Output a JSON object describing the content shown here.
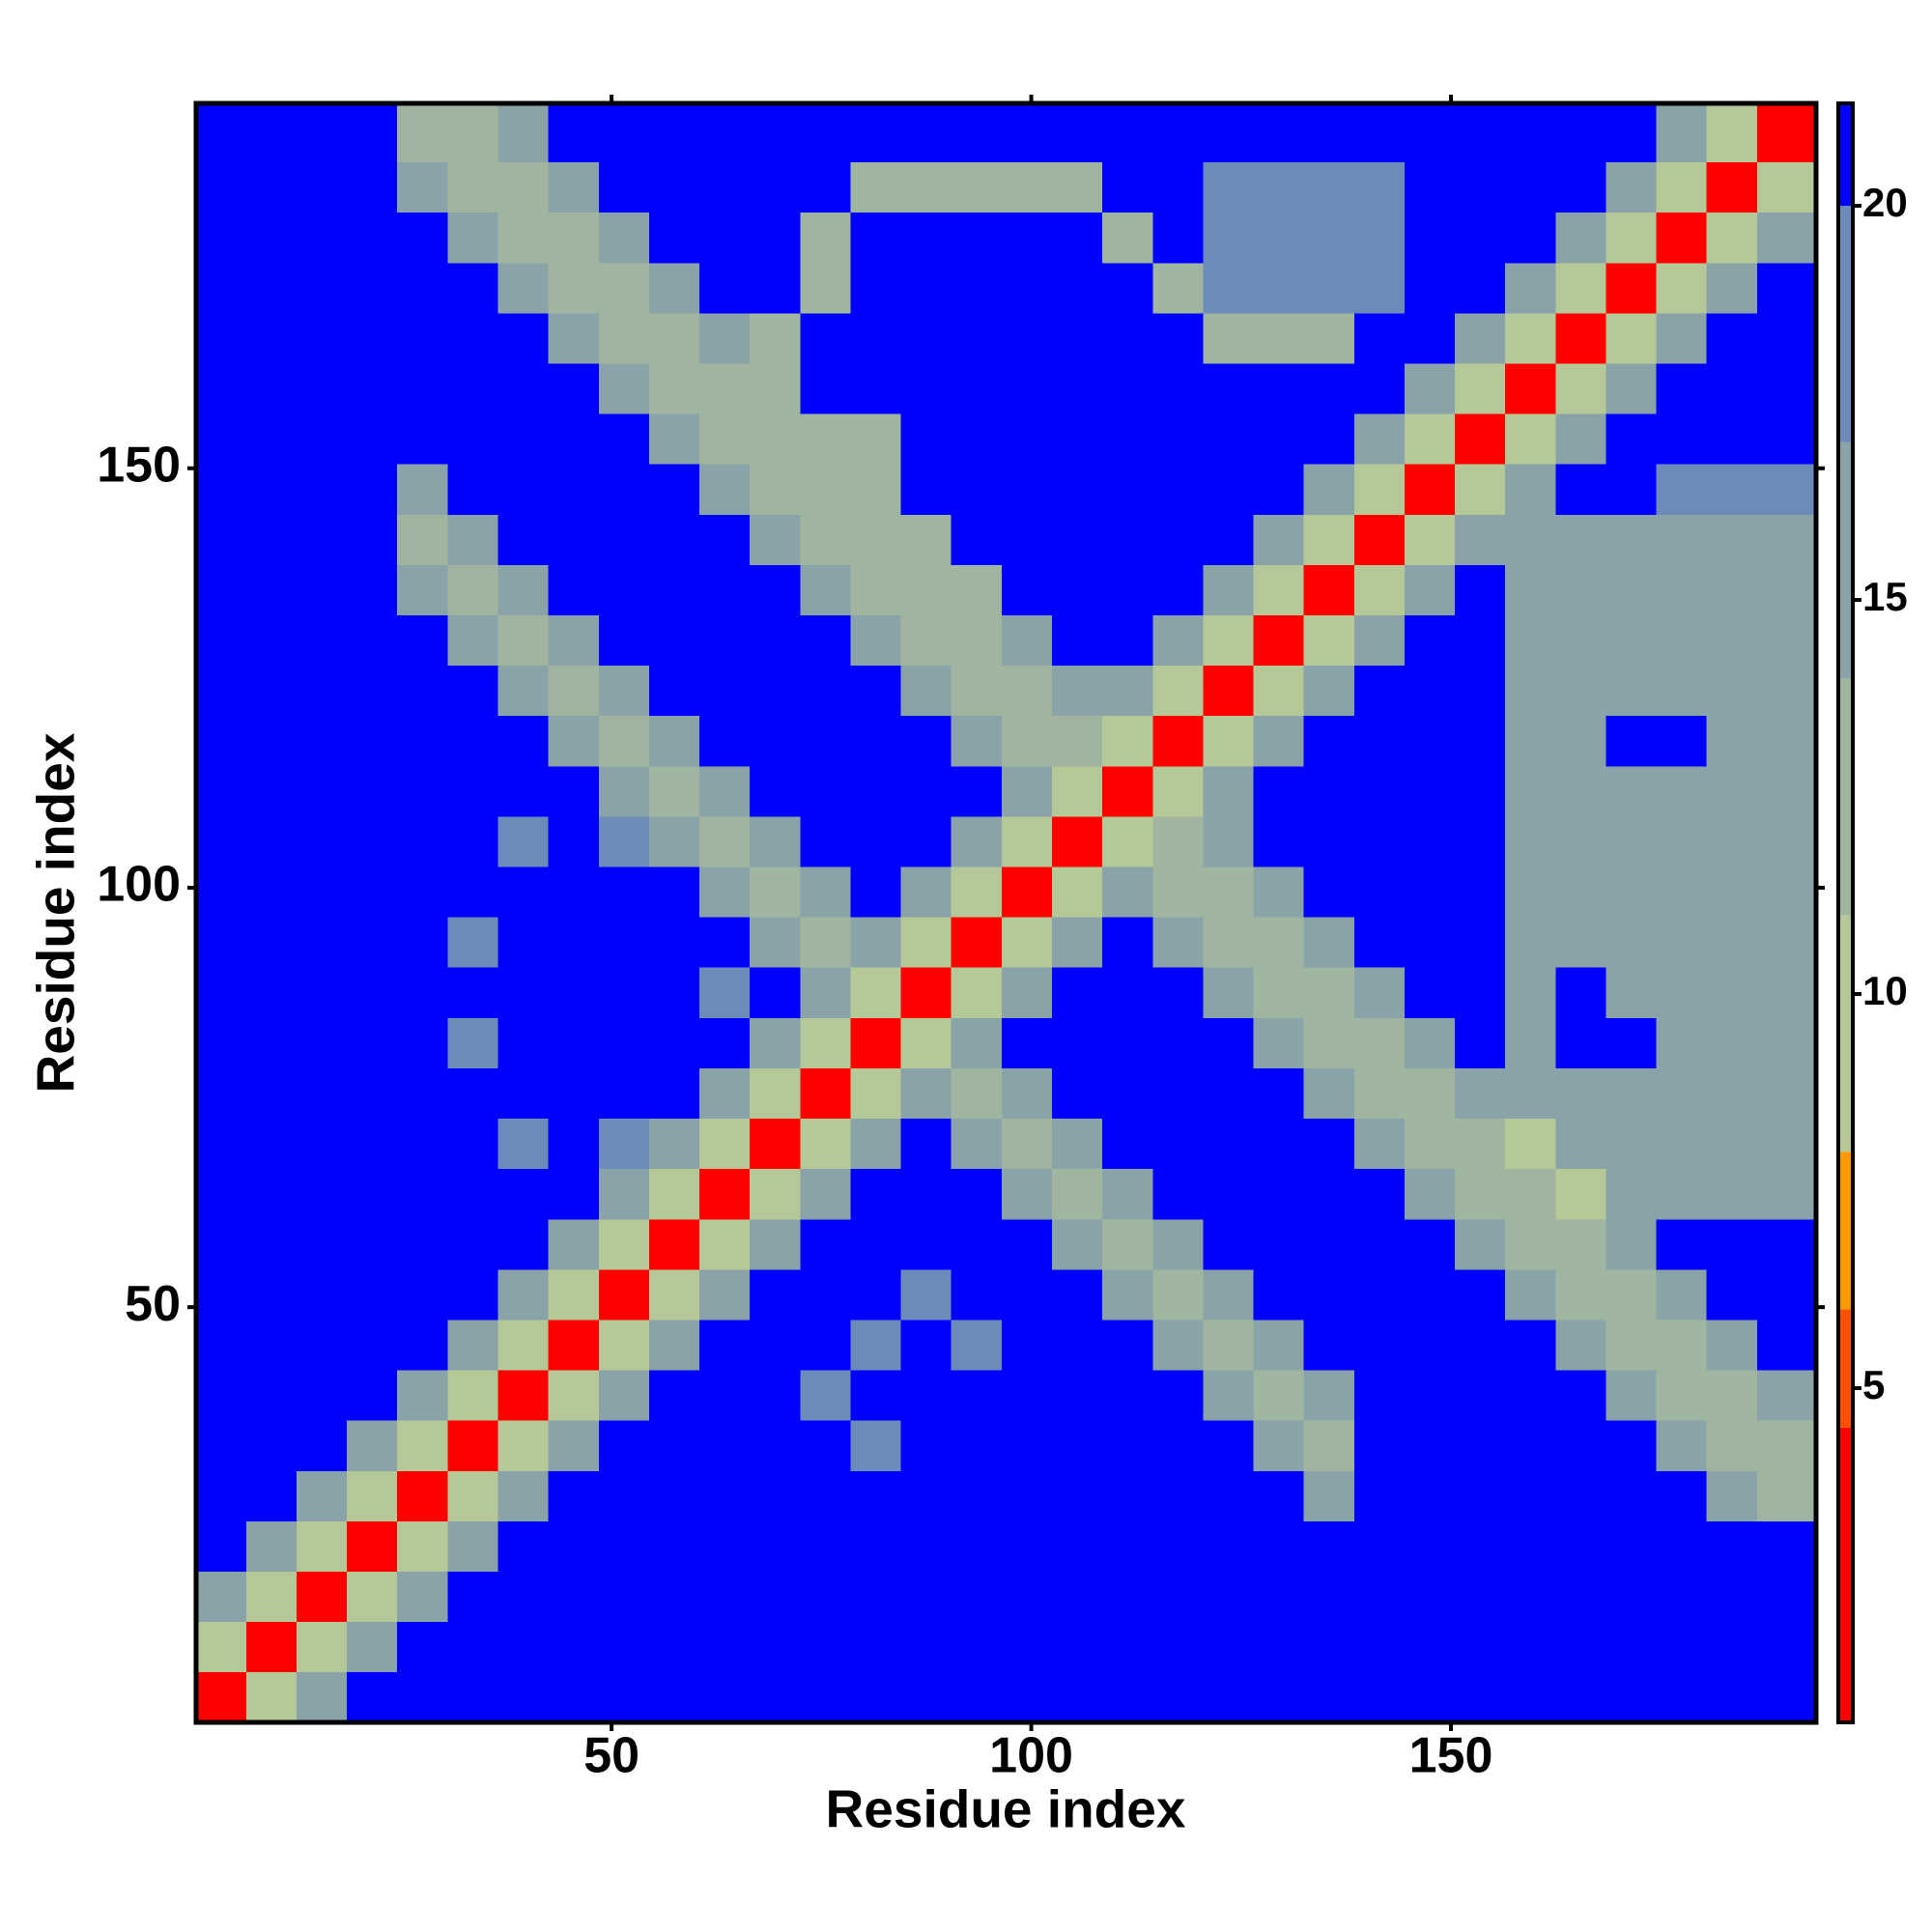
{
  "chart_data": {
    "type": "heatmap",
    "xlabel": "Residue index",
    "ylabel": "Residue index",
    "xlim": [
      0.5,
      193.5
    ],
    "ylim": [
      0.5,
      193.5
    ],
    "xticks": [
      50,
      100,
      150
    ],
    "yticks": [
      50,
      100,
      150
    ],
    "xbins": [
      0.5,
      6.5,
      12.5,
      18.5,
      24.5,
      30.5,
      36.5,
      42.5,
      48.5,
      54.5,
      60.5,
      66.5,
      72.5,
      78.5,
      84.5,
      90.5,
      96.5,
      102.5,
      108.5,
      114.5,
      120.5,
      126.5,
      132.5,
      138.5,
      144.5,
      150.5,
      156.5,
      162.5,
      168.5,
      174.5,
      180.5,
      186.5,
      193.5
    ],
    "ybins": [
      0.5,
      6.5,
      12.5,
      18.5,
      24.5,
      30.5,
      36.5,
      42.5,
      48.5,
      54.5,
      60.5,
      66.5,
      72.5,
      78.5,
      84.5,
      90.5,
      96.5,
      102.5,
      108.5,
      114.5,
      120.5,
      126.5,
      132.5,
      138.5,
      144.5,
      150.5,
      156.5,
      162.5,
      168.5,
      174.5,
      180.5,
      186.5,
      193.5
    ],
    "z": [
      [
        4,
        10,
        16,
        21,
        21,
        21,
        21,
        21,
        21,
        21,
        21,
        21,
        21,
        21,
        21,
        21,
        21,
        21,
        21,
        21,
        21,
        21,
        21,
        21,
        21,
        21,
        21,
        21,
        21,
        21,
        21,
        21
      ],
      [
        10,
        4,
        10,
        16,
        21,
        21,
        21,
        21,
        21,
        21,
        21,
        21,
        21,
        21,
        21,
        21,
        21,
        21,
        21,
        21,
        21,
        21,
        21,
        21,
        21,
        21,
        21,
        21,
        21,
        21,
        21,
        21
      ],
      [
        16,
        10,
        4,
        10,
        16,
        21,
        21,
        21,
        21,
        21,
        21,
        21,
        21,
        21,
        21,
        21,
        21,
        21,
        21,
        21,
        21,
        21,
        21,
        21,
        21,
        21,
        21,
        21,
        21,
        21,
        21,
        21
      ],
      [
        21,
        16,
        10,
        4,
        10,
        16,
        21,
        21,
        21,
        21,
        21,
        21,
        21,
        21,
        21,
        21,
        21,
        21,
        21,
        21,
        21,
        21,
        21,
        21,
        21,
        21,
        21,
        21,
        21,
        21,
        21,
        21
      ],
      [
        21,
        21,
        16,
        10,
        4,
        10,
        16,
        21,
        21,
        21,
        21,
        21,
        21,
        21,
        21,
        21,
        21,
        21,
        21,
        21,
        21,
        21,
        15,
        21,
        21,
        21,
        21,
        21,
        21,
        21,
        16,
        11
      ],
      [
        21,
        21,
        21,
        16,
        10,
        4,
        10,
        16,
        21,
        21,
        21,
        21,
        21,
        17,
        21,
        21,
        21,
        21,
        21,
        21,
        21,
        15,
        11,
        21,
        21,
        21,
        21,
        21,
        21,
        16,
        11,
        11
      ],
      [
        21,
        21,
        21,
        21,
        16,
        10,
        4,
        10,
        16,
        21,
        21,
        21,
        17,
        21,
        21,
        21,
        21,
        21,
        21,
        21,
        15,
        11,
        15,
        21,
        21,
        21,
        21,
        21,
        16,
        11,
        11,
        16
      ],
      [
        21,
        21,
        21,
        21,
        21,
        16,
        10,
        4,
        10,
        16,
        21,
        21,
        21,
        17,
        21,
        17,
        21,
        21,
        21,
        15,
        11,
        15,
        21,
        21,
        21,
        21,
        21,
        16,
        11,
        11,
        16,
        21
      ],
      [
        21,
        21,
        21,
        21,
        21,
        21,
        16,
        10,
        4,
        10,
        16,
        21,
        21,
        21,
        17,
        21,
        21,
        21,
        15,
        11,
        15,
        21,
        21,
        21,
        21,
        21,
        16,
        11,
        11,
        16,
        21,
        21
      ],
      [
        21,
        21,
        21,
        21,
        21,
        21,
        21,
        16,
        10,
        4,
        10,
        16,
        21,
        21,
        21,
        21,
        21,
        15,
        11,
        15,
        21,
        21,
        21,
        21,
        21,
        16,
        11,
        11,
        16,
        21,
        21,
        21
      ],
      [
        21,
        21,
        21,
        21,
        21,
        21,
        21,
        21,
        16,
        10,
        4,
        10,
        16,
        21,
        21,
        21,
        15,
        11,
        15,
        21,
        21,
        21,
        21,
        21,
        16,
        11,
        11,
        8,
        16,
        16,
        16,
        16
      ],
      [
        21,
        21,
        21,
        21,
        21,
        21,
        17,
        21,
        17,
        16,
        10,
        4,
        10,
        16,
        21,
        15,
        11,
        15,
        21,
        21,
        21,
        21,
        21,
        16,
        11,
        11,
        8,
        16,
        16,
        16,
        16,
        16
      ],
      [
        21,
        21,
        21,
        21,
        21,
        21,
        21,
        21,
        21,
        21,
        16,
        10,
        4,
        10,
        15,
        11,
        15,
        21,
        21,
        21,
        21,
        21,
        16,
        11,
        11,
        16,
        15,
        15,
        15,
        15,
        15,
        15
      ],
      [
        21,
        21,
        21,
        21,
        21,
        17,
        21,
        21,
        21,
        21,
        21,
        16,
        10,
        4,
        10,
        15,
        21,
        21,
        21,
        21,
        21,
        16,
        11,
        11,
        16,
        21,
        15,
        21,
        21,
        15,
        15,
        15
      ],
      [
        21,
        21,
        21,
        21,
        21,
        21,
        21,
        21,
        21,
        21,
        17,
        21,
        15,
        10,
        4,
        10,
        16,
        21,
        21,
        21,
        16,
        11,
        11,
        16,
        21,
        21,
        15,
        21,
        15,
        15,
        15,
        15
      ],
      [
        21,
        21,
        21,
        21,
        21,
        17,
        21,
        21,
        21,
        21,
        21,
        15,
        11,
        15,
        10,
        4,
        10,
        16,
        21,
        16,
        11,
        11,
        16,
        21,
        21,
        21,
        15,
        15,
        15,
        15,
        15,
        15
      ],
      [
        21,
        21,
        21,
        21,
        21,
        21,
        21,
        21,
        21,
        21,
        15,
        11,
        15,
        21,
        16,
        10,
        4,
        10,
        16,
        11,
        11,
        16,
        21,
        21,
        21,
        21,
        15,
        15,
        15,
        15,
        15,
        15
      ],
      [
        21,
        21,
        21,
        21,
        21,
        21,
        17,
        21,
        17,
        15,
        11,
        15,
        21,
        21,
        21,
        16,
        10,
        4,
        10,
        11,
        16,
        21,
        21,
        21,
        21,
        21,
        15,
        15,
        15,
        15,
        15,
        15
      ],
      [
        21,
        21,
        21,
        21,
        21,
        21,
        21,
        21,
        15,
        11,
        15,
        21,
        21,
        21,
        21,
        21,
        16,
        10,
        4,
        10,
        16,
        21,
        21,
        21,
        21,
        21,
        15,
        15,
        15,
        15,
        15,
        15
      ],
      [
        21,
        21,
        21,
        21,
        21,
        21,
        21,
        15,
        11,
        15,
        21,
        21,
        21,
        21,
        21,
        16,
        11,
        11,
        10,
        4,
        10,
        16,
        21,
        21,
        21,
        21,
        15,
        15,
        21,
        21,
        15,
        15
      ],
      [
        21,
        21,
        21,
        21,
        21,
        21,
        15,
        11,
        15,
        21,
        21,
        21,
        21,
        21,
        16,
        11,
        11,
        16,
        16,
        10,
        4,
        10,
        16,
        21,
        21,
        21,
        15,
        15,
        15,
        15,
        15,
        15
      ],
      [
        21,
        21,
        21,
        21,
        21,
        15,
        11,
        15,
        21,
        21,
        21,
        21,
        21,
        16,
        11,
        11,
        16,
        21,
        21,
        16,
        10,
        4,
        10,
        16,
        21,
        21,
        15,
        15,
        15,
        15,
        15,
        15
      ],
      [
        21,
        21,
        21,
        21,
        15,
        11,
        15,
        21,
        21,
        21,
        21,
        21,
        16,
        11,
        11,
        13,
        21,
        21,
        21,
        21,
        16,
        10,
        4,
        10,
        16,
        21,
        15,
        15,
        15,
        15,
        15,
        15
      ],
      [
        21,
        21,
        21,
        21,
        11,
        15,
        21,
        21,
        21,
        21,
        21,
        16,
        11,
        11,
        13,
        21,
        21,
        21,
        21,
        21,
        21,
        16,
        10,
        4,
        10,
        16,
        16,
        16,
        16,
        16,
        16,
        16
      ],
      [
        21,
        21,
        21,
        21,
        15,
        21,
        21,
        21,
        21,
        21,
        16,
        11,
        11,
        13,
        21,
        21,
        21,
        21,
        21,
        21,
        21,
        21,
        16,
        10,
        4,
        10,
        16,
        21,
        21,
        17,
        17,
        17
      ],
      [
        21,
        21,
        21,
        21,
        21,
        21,
        21,
        21,
        21,
        16,
        11,
        11,
        13,
        13,
        21,
        21,
        21,
        21,
        21,
        21,
        21,
        21,
        21,
        16,
        10,
        4,
        10,
        16,
        21,
        21,
        21,
        21
      ],
      [
        21,
        21,
        21,
        21,
        21,
        21,
        21,
        21,
        16,
        11,
        11,
        13,
        21,
        21,
        21,
        21,
        21,
        21,
        21,
        21,
        21,
        21,
        21,
        21,
        16,
        10,
        4,
        10,
        16,
        21,
        21,
        21
      ],
      [
        21,
        21,
        21,
        21,
        21,
        21,
        21,
        16,
        11,
        11,
        16,
        13,
        21,
        21,
        21,
        21,
        21,
        21,
        21,
        21,
        13,
        13,
        13,
        21,
        21,
        16,
        10,
        4,
        10,
        16,
        21,
        21
      ],
      [
        21,
        21,
        21,
        21,
        21,
        21,
        16,
        11,
        11,
        16,
        21,
        21,
        13,
        21,
        21,
        21,
        21,
        21,
        21,
        13,
        18,
        18,
        18,
        18,
        21,
        21,
        16,
        10,
        4,
        10,
        16,
        21
      ],
      [
        21,
        21,
        21,
        21,
        21,
        16,
        11,
        11,
        16,
        21,
        21,
        21,
        13,
        21,
        21,
        21,
        21,
        21,
        13,
        21,
        18,
        18,
        18,
        18,
        21,
        21,
        21,
        16,
        10,
        4,
        10,
        16
      ],
      [
        21,
        21,
        21,
        21,
        16,
        11,
        11,
        16,
        21,
        21,
        21,
        21,
        21,
        13,
        13,
        13,
        13,
        13,
        21,
        21,
        18,
        18,
        18,
        18,
        21,
        21,
        21,
        21,
        16,
        10,
        4,
        10
      ],
      [
        21,
        21,
        21,
        21,
        11,
        11,
        16,
        21,
        21,
        21,
        21,
        21,
        21,
        21,
        21,
        21,
        21,
        21,
        21,
        21,
        21,
        21,
        21,
        21,
        21,
        21,
        21,
        21,
        21,
        16,
        10,
        4
      ]
    ],
    "zlim": [
      0.76,
      21.3
    ],
    "zticks": [
      5,
      10,
      15,
      20
    ],
    "colorscale": {
      "edges": [
        0.76,
        4.5,
        6,
        8,
        11,
        14,
        17,
        20,
        21.3
      ],
      "colors": [
        "#ff0000",
        "#ff5000",
        "#ff9a00",
        "#b4c898",
        "#9fb59f",
        "#8aa3a8",
        "#6d8bb8",
        "#0000ff"
      ]
    }
  }
}
